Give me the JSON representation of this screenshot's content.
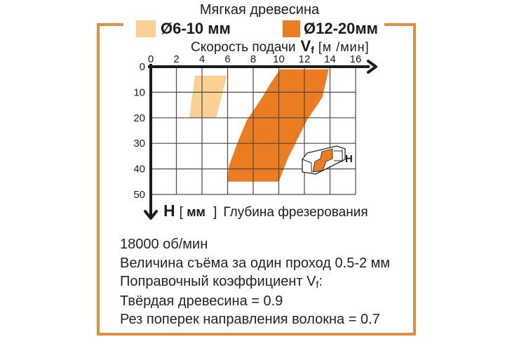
{
  "title": "Мягкая древесина",
  "legend": {
    "items": [
      {
        "label": "Ø6-10 мм",
        "color": "#FAD192"
      },
      {
        "label": "Ø12-20мм",
        "color": "#EC7C22"
      }
    ]
  },
  "x_axis": {
    "label": "Скорость подачи",
    "symbol": "V",
    "symbol_sub": "f",
    "unit": "[м /мин]"
  },
  "y_axis": {
    "symbol": "H",
    "bracket_open": "[ ",
    "unit": "мм",
    "bracket_close": " ]",
    "label": "Глубина фрезерования"
  },
  "h_marker": "H",
  "footer": {
    "rpm": "18000 об/мин",
    "pass": "Величина съёма за один проход 0.5-2 мм",
    "coef_prefix": "Поправочный коэффициент ",
    "coef_symbol": "V",
    "coef_sub": "f",
    "coef_suffix": ":",
    "hardwood": "Твёрдая древесина = 0.9",
    "cross_grain": "Рез поперек направления волокна = 0.7"
  },
  "chart_data": {
    "type": "area",
    "title": "Мягкая древесина",
    "xlabel": "Скорость подачи Vf [м/мин]",
    "ylabel": "H [мм] Глубина фрезерования",
    "xlim": [
      0,
      16
    ],
    "ylim": [
      0,
      50
    ],
    "x_ticks": [
      0,
      2,
      4,
      6,
      8,
      10,
      12,
      14,
      16
    ],
    "y_ticks": [
      0,
      10,
      20,
      30,
      40,
      50
    ],
    "grid": true,
    "y_inverted": true,
    "regions": [
      {
        "name": "Ø6-10 мм",
        "color": "#FAD192",
        "points": [
          [
            3.45,
            3.5
          ],
          [
            5.95,
            3.5
          ],
          [
            5.1,
            20
          ],
          [
            3,
            20
          ]
        ]
      },
      {
        "name": "Ø12-20 мм",
        "color": "#EC7C22",
        "points": [
          [
            10.1,
            1
          ],
          [
            13.9,
            1
          ],
          [
            13.4,
            12
          ],
          [
            12.2,
            21
          ],
          [
            11.5,
            28
          ],
          [
            10.7,
            36
          ],
          [
            10,
            45
          ],
          [
            6,
            45
          ],
          [
            6.1,
            39
          ],
          [
            6.75,
            30
          ],
          [
            7.5,
            21
          ],
          [
            8.7,
            12
          ],
          [
            9.3,
            7
          ]
        ]
      }
    ],
    "colors": {
      "accent_frame": "#DE8F40",
      "axis": "#1b1b1b",
      "grid": "#4a4a4a"
    }
  }
}
